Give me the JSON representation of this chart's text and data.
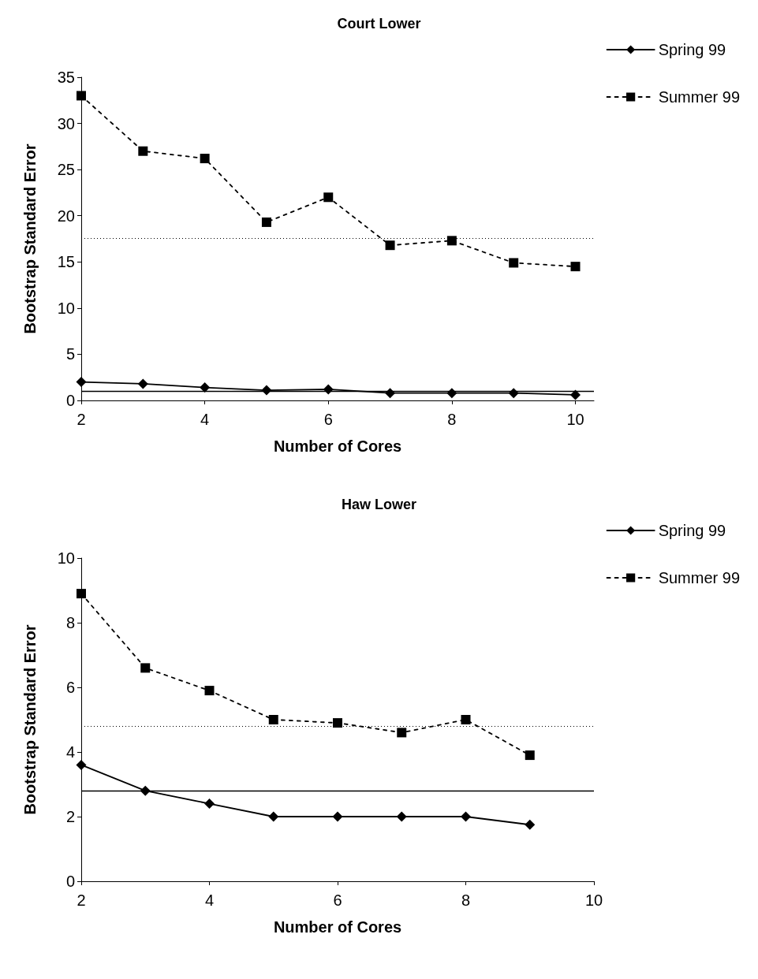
{
  "chart_data": [
    {
      "type": "line",
      "title": "Court Lower",
      "xlabel": "Number of Cores",
      "ylabel": "Bootstrap Standard Error",
      "x": [
        2,
        3,
        4,
        5,
        6,
        7,
        8,
        9,
        10
      ],
      "xlim": [
        2,
        10.3
      ],
      "xticks": [
        2,
        4,
        6,
        8,
        10
      ],
      "ylim": [
        0,
        35
      ],
      "yticks": [
        0,
        5,
        10,
        15,
        20,
        25,
        30,
        35
      ],
      "grid": false,
      "legend": "top right",
      "series": [
        {
          "name": "Spring 99",
          "color": "#000000",
          "marker": "diamond",
          "line_style": "solid",
          "values": [
            2.0,
            1.8,
            1.4,
            1.1,
            1.2,
            0.8,
            0.8,
            0.8,
            0.6
          ]
        },
        {
          "name": "Summer 99",
          "color": "#000000",
          "marker": "square",
          "line_style": "dashed",
          "values": [
            33,
            27,
            26.2,
            19.3,
            22,
            16.8,
            17.3,
            14.9,
            14.5
          ]
        }
      ],
      "ref_lines": [
        {
          "axis": "y",
          "value": 17.6,
          "color": "#000000",
          "line_style": "dotted"
        },
        {
          "axis": "y",
          "value": 1.0,
          "color": "#000000",
          "line_style": "solid"
        }
      ]
    },
    {
      "type": "line",
      "title": "Haw Lower",
      "xlabel": "Number of Cores",
      "ylabel": "Bootstrap Standard Error",
      "x": [
        2,
        3,
        4,
        5,
        6,
        7,
        8,
        9
      ],
      "xlim": [
        2,
        10
      ],
      "xticks": [
        2,
        4,
        6,
        8,
        10
      ],
      "ylim": [
        0,
        10
      ],
      "yticks": [
        0,
        2,
        4,
        6,
        8,
        10
      ],
      "grid": false,
      "legend": "top right",
      "series": [
        {
          "name": "Spring 99",
          "color": "#000000",
          "marker": "diamond",
          "line_style": "solid",
          "values": [
            3.6,
            2.8,
            2.4,
            2.0,
            2.0,
            2.0,
            2.0,
            1.75
          ]
        },
        {
          "name": "Summer 99",
          "color": "#000000",
          "marker": "square",
          "line_style": "dashed",
          "values": [
            8.9,
            6.6,
            5.9,
            5.0,
            4.9,
            4.6,
            5.0,
            3.9
          ]
        }
      ],
      "ref_lines": [
        {
          "axis": "y",
          "value": 4.8,
          "color": "#000000",
          "line_style": "dotted"
        },
        {
          "axis": "y",
          "value": 2.8,
          "color": "#000000",
          "line_style": "solid"
        }
      ]
    }
  ]
}
